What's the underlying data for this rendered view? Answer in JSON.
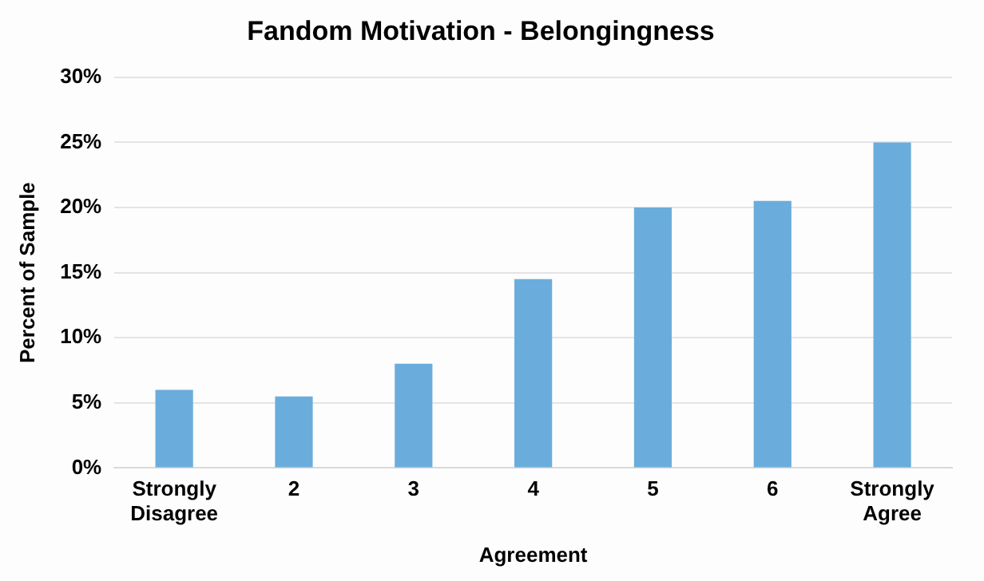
{
  "chart_data": {
    "type": "bar",
    "title": "Fandom Motivation - Belongingness",
    "xlabel": "Agreement",
    "ylabel": "Percent of Sample",
    "categories": [
      "Strongly Disagree",
      "2",
      "3",
      "4",
      "5",
      "6",
      "Strongly Agree"
    ],
    "values": [
      6,
      5.5,
      8,
      14.5,
      20,
      20.5,
      25
    ],
    "color": "#6aaddc",
    "ylim": [
      0,
      30
    ],
    "yticks": [
      {
        "value": 0,
        "label": "0%"
      },
      {
        "value": 5,
        "label": "5%"
      },
      {
        "value": 10,
        "label": "10%"
      },
      {
        "value": 15,
        "label": "15%"
      },
      {
        "value": 20,
        "label": "20%"
      },
      {
        "value": 25,
        "label": "25%"
      },
      {
        "value": 30,
        "label": "30%"
      }
    ],
    "grid": "y",
    "legend": false
  }
}
